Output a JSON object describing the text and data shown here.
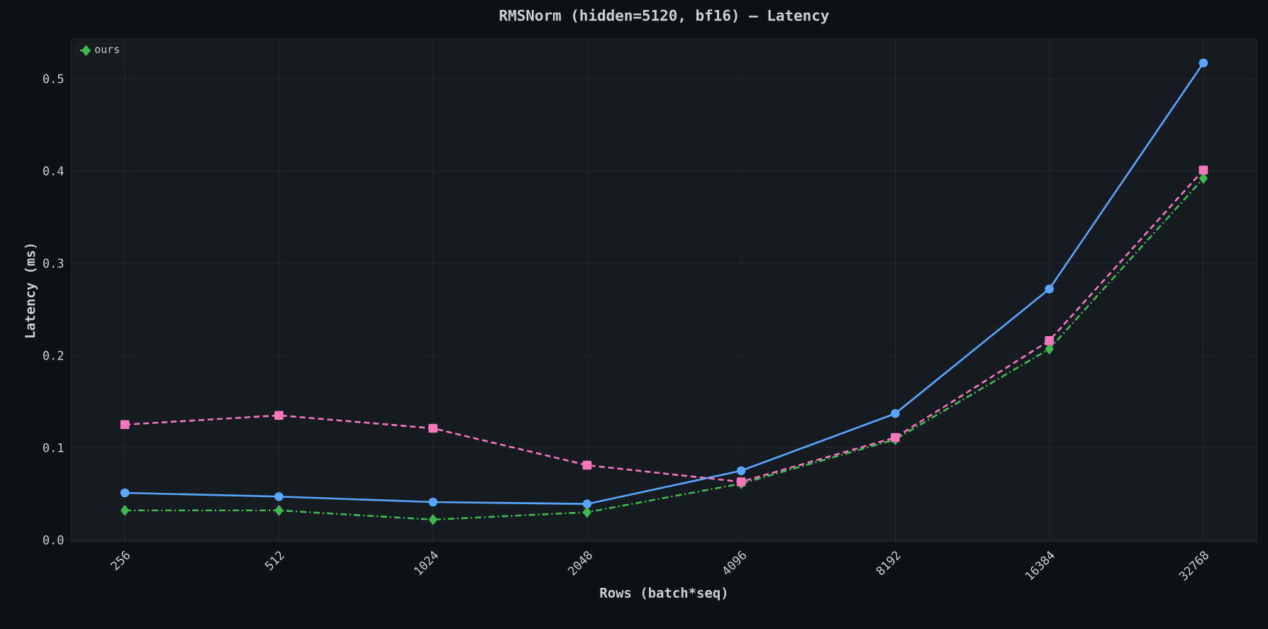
{
  "chart_data": {
    "type": "line",
    "title": "RMSNorm (hidden=5120, bf16) — Latency",
    "xlabel": "Rows (batch*seq)",
    "ylabel": "Latency (ms)",
    "categories": [
      "256",
      "512",
      "1024",
      "2048",
      "4096",
      "8192",
      "16384",
      "32768"
    ],
    "series": [
      {
        "color": "#58a6ff",
        "marker": "circle",
        "line_style": "solid",
        "values": [
          0.051,
          0.047,
          0.041,
          0.039,
          0.075,
          0.137,
          0.272,
          0.517
        ]
      },
      {
        "name": "ours",
        "color": "#3fb950",
        "marker": "diamond",
        "line_style": "dashdot",
        "values": [
          0.032,
          0.032,
          0.022,
          0.03,
          0.061,
          0.109,
          0.207,
          0.392
        ]
      },
      {
        "color": "#f778ba",
        "marker": "square",
        "line_style": "dashed",
        "values": [
          0.125,
          0.135,
          0.121,
          0.081,
          0.063,
          0.111,
          0.216,
          0.401
        ]
      }
    ],
    "ylim": [
      -0.002,
      0.543
    ],
    "yticks": [
      {
        "value": 0,
        "label": "0.0"
      },
      {
        "value": 0.1,
        "label": "0.1"
      },
      {
        "value": 0.2,
        "label": "0.2"
      },
      {
        "value": 0.3,
        "label": "0.3"
      },
      {
        "value": 0.4,
        "label": "0.4"
      },
      {
        "value": 0.5,
        "label": "0.5"
      }
    ],
    "grid": true,
    "legend": "top left"
  }
}
